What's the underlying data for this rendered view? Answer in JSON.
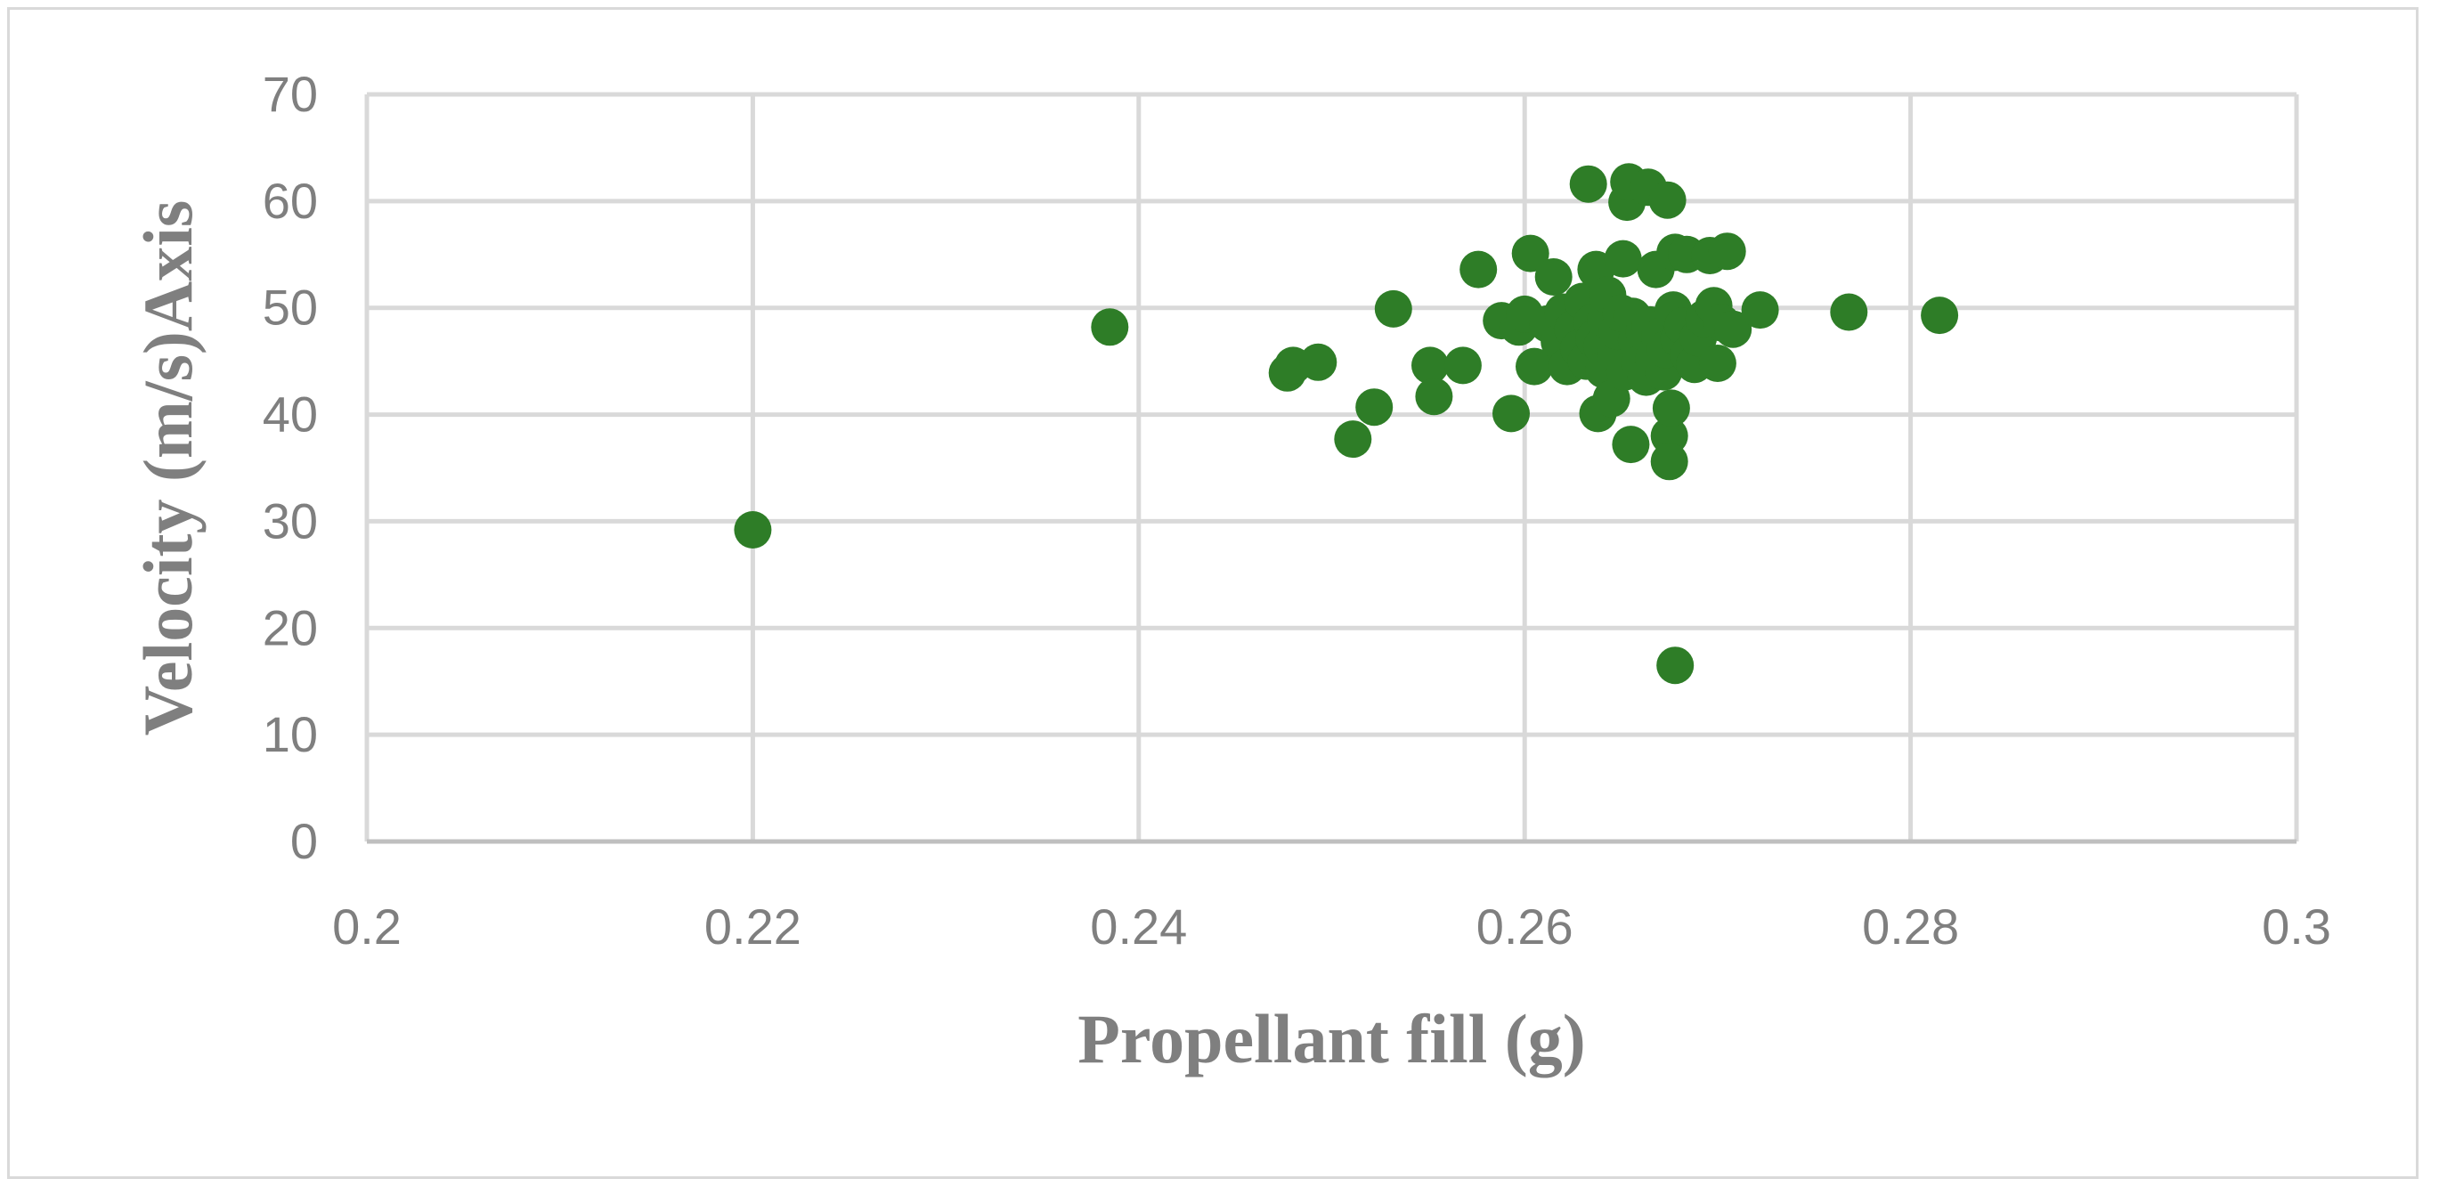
{
  "chart_data": {
    "type": "scatter",
    "xlabel": "Propellant fill (g)",
    "ylabel": "Velocity (m/s)Axis",
    "xlim": [
      0.2,
      0.3
    ],
    "ylim": [
      0,
      70
    ],
    "x_ticks": [
      "0.2",
      "0.22",
      "0.24",
      "0.26",
      "0.28",
      "0.3"
    ],
    "y_ticks": [
      "0",
      "10",
      "20",
      "30",
      "40",
      "50",
      "60",
      "70"
    ],
    "grid": true,
    "legend": "none",
    "marker_color": "#2e7d27",
    "series": [
      {
        "points": [
          [
            0.22,
            29.2
          ],
          [
            0.2385,
            48.2
          ],
          [
            0.2477,
            43.9
          ],
          [
            0.248,
            44.6
          ],
          [
            0.2493,
            44.9
          ],
          [
            0.2511,
            37.7
          ],
          [
            0.2522,
            40.7
          ],
          [
            0.2532,
            49.9
          ],
          [
            0.2551,
            44.6
          ],
          [
            0.2553,
            41.7
          ],
          [
            0.2568,
            44.6
          ],
          [
            0.2576,
            53.6
          ],
          [
            0.2588,
            48.8
          ],
          [
            0.2593,
            40.1
          ],
          [
            0.2597,
            48.2
          ],
          [
            0.26,
            49.4
          ],
          [
            0.2603,
            55.1
          ],
          [
            0.2605,
            44.5
          ],
          [
            0.2612,
            48.5
          ],
          [
            0.2615,
            52.9
          ],
          [
            0.2618,
            46.8
          ],
          [
            0.262,
            49.6
          ],
          [
            0.2622,
            44.5
          ],
          [
            0.2625,
            48.0
          ],
          [
            0.2628,
            46.2
          ],
          [
            0.263,
            50.6
          ],
          [
            0.2632,
            45.0
          ],
          [
            0.2633,
            61.6
          ],
          [
            0.2635,
            48.6
          ],
          [
            0.2636,
            47.1
          ],
          [
            0.2637,
            53.6
          ],
          [
            0.2638,
            40.1
          ],
          [
            0.264,
            46.4
          ],
          [
            0.2641,
            44.2
          ],
          [
            0.2642,
            48.9
          ],
          [
            0.2643,
            51.2
          ],
          [
            0.2645,
            41.5
          ],
          [
            0.2647,
            45.6
          ],
          [
            0.2648,
            47.8
          ],
          [
            0.265,
            49.5
          ],
          [
            0.2651,
            54.6
          ],
          [
            0.2652,
            44.0
          ],
          [
            0.2653,
            59.9
          ],
          [
            0.2654,
            61.8
          ],
          [
            0.2655,
            37.2
          ],
          [
            0.2656,
            49.2
          ],
          [
            0.2658,
            46.9
          ],
          [
            0.266,
            44.8
          ],
          [
            0.2662,
            47.7
          ],
          [
            0.2663,
            43.5
          ],
          [
            0.2664,
            61.3
          ],
          [
            0.2665,
            48.4
          ],
          [
            0.2667,
            45.2
          ],
          [
            0.2668,
            53.6
          ],
          [
            0.267,
            47.3
          ],
          [
            0.2672,
            44.0
          ],
          [
            0.2673,
            46.1
          ],
          [
            0.2674,
            60.1
          ],
          [
            0.2675,
            38.0
          ],
          [
            0.2675,
            35.6
          ],
          [
            0.2676,
            40.6
          ],
          [
            0.2677,
            49.8
          ],
          [
            0.2678,
            55.2
          ],
          [
            0.2678,
            16.5
          ],
          [
            0.268,
            47.1
          ],
          [
            0.2682,
            48.3
          ],
          [
            0.2684,
            55.0
          ],
          [
            0.2685,
            45.6
          ],
          [
            0.2688,
            44.7
          ],
          [
            0.269,
            47.2
          ],
          [
            0.2693,
            49.0
          ],
          [
            0.2696,
            54.9
          ],
          [
            0.2698,
            50.2
          ],
          [
            0.27,
            44.8
          ],
          [
            0.2702,
            48.6
          ],
          [
            0.2705,
            55.3
          ],
          [
            0.2708,
            48.0
          ],
          [
            0.2722,
            49.8
          ],
          [
            0.2768,
            49.6
          ],
          [
            0.2815,
            49.3
          ]
        ]
      }
    ]
  }
}
